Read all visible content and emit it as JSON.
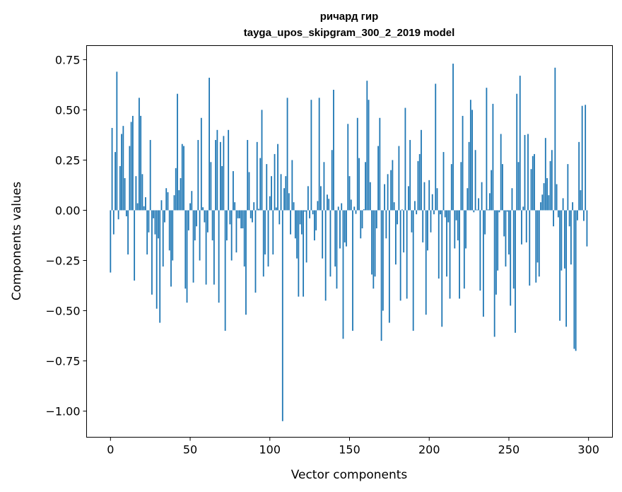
{
  "chart_data": {
    "type": "bar",
    "title": "ричард гир",
    "subtitle": "tayga_upos_skipgram_300_2_2019 model",
    "xlabel": "Vector components",
    "ylabel": "Components values",
    "xlim": [
      -15,
      315
    ],
    "ylim": [
      -1.13,
      0.82
    ],
    "xticks": [
      0,
      50,
      100,
      150,
      200,
      250,
      300
    ],
    "yticks": [
      -1.0,
      -0.75,
      -0.5,
      -0.25,
      0.0,
      0.25,
      0.5,
      0.75
    ],
    "ytick_labels": [
      "−1.00",
      "−0.75",
      "−0.50",
      "−0.25",
      "0.00",
      "0.25",
      "0.50",
      "0.75"
    ],
    "xtick_labels": [
      "0",
      "50",
      "100",
      "150",
      "200",
      "250",
      "300"
    ],
    "grid": false,
    "color": "#1f77b4",
    "values": [
      -0.31,
      0.41,
      -0.12,
      0.29,
      0.69,
      -0.045,
      0.22,
      0.38,
      0.42,
      0.16,
      -0.03,
      -0.22,
      0.32,
      0.44,
      0.47,
      -0.35,
      0.17,
      0.035,
      0.56,
      0.47,
      0.18,
      0.02,
      0.065,
      -0.22,
      -0.11,
      0.35,
      -0.42,
      -0.04,
      -0.12,
      -0.49,
      -0.14,
      -0.56,
      0.05,
      -0.28,
      -0.06,
      0.11,
      0.09,
      -0.2,
      -0.38,
      -0.25,
      0.075,
      0.21,
      0.58,
      0.1,
      0.16,
      0.33,
      0.32,
      -0.39,
      -0.46,
      -0.1,
      0.035,
      0.096,
      -0.36,
      -0.15,
      -0.08,
      0.35,
      -0.25,
      0.46,
      0.015,
      -0.06,
      -0.37,
      -0.11,
      0.66,
      0.24,
      -0.15,
      -0.37,
      0.35,
      0.4,
      -0.46,
      0.34,
      0.22,
      0.37,
      -0.6,
      -0.15,
      0.4,
      -0.07,
      -0.25,
      0.195,
      0.04,
      -0.21,
      -0.04,
      -0.04,
      -0.09,
      -0.09,
      -0.28,
      -0.52,
      0.35,
      0.19,
      -0.04,
      -0.06,
      0.04,
      -0.41,
      0.34,
      0.007,
      0.26,
      0.5,
      -0.33,
      -0.22,
      0.23,
      -0.28,
      0.07,
      0.17,
      -0.22,
      0.28,
      0.014,
      0.33,
      -0.07,
      0.18,
      -1.05,
      0.11,
      0.17,
      0.56,
      0.085,
      -0.12,
      0.25,
      0.04,
      -0.14,
      -0.24,
      -0.43,
      -0.07,
      -0.12,
      -0.43,
      -0.007,
      -0.26,
      0.12,
      -0.04,
      0.55,
      -0.02,
      -0.15,
      -0.1,
      0.046,
      0.56,
      0.12,
      -0.24,
      0.24,
      -0.45,
      0.078,
      0.057,
      -0.33,
      0.3,
      0.6,
      -0.28,
      -0.39,
      0.018,
      -0.19,
      0.035,
      -0.64,
      -0.16,
      -0.18,
      0.43,
      0.17,
      0.053,
      -0.6,
      0.018,
      -0.018,
      0.46,
      0.26,
      -0.14,
      -0.09,
      0.005,
      0.24,
      0.645,
      0.55,
      0.14,
      -0.32,
      -0.39,
      -0.33,
      -0.09,
      0.32,
      0.46,
      -0.65,
      -0.5,
      0.13,
      -0.14,
      0.18,
      -0.56,
      0.2,
      0.25,
      0.04,
      -0.27,
      -0.07,
      0.32,
      -0.45,
      0.004,
      -0.21,
      0.51,
      -0.44,
      0.12,
      0.35,
      -0.11,
      -0.6,
      0.046,
      -0.02,
      0.245,
      0.28,
      0.4,
      -0.16,
      0.14,
      -0.52,
      -0.2,
      0.15,
      -0.11,
      0.08,
      -0.02,
      0.63,
      0.11,
      -0.34,
      -0.02,
      -0.58,
      0.29,
      -0.035,
      -0.33,
      -0.06,
      -0.44,
      0.23,
      0.73,
      -0.19,
      -0.05,
      -0.15,
      -0.44,
      0.24,
      0.47,
      -0.39,
      -0.19,
      0.11,
      0.34,
      0.55,
      0.5,
      -0.01,
      0.3,
      0.003,
      0.06,
      -0.4,
      0.14,
      -0.53,
      -0.12,
      0.61,
      0.004,
      0.085,
      0.2,
      0.53,
      -0.63,
      -0.42,
      -0.3,
      -0.01,
      0.38,
      0.23,
      -0.13,
      -0.28,
      -0.007,
      -0.22,
      -0.475,
      0.11,
      -0.39,
      -0.61,
      0.58,
      0.24,
      0.67,
      -0.17,
      0.018,
      0.375,
      -0.16,
      0.38,
      -0.375,
      0.205,
      0.27,
      0.28,
      -0.36,
      -0.26,
      -0.33,
      0.04,
      0.078,
      0.135,
      0.36,
      0.16,
      0.075,
      0.245,
      0.3,
      -0.08,
      0.71,
      0.13,
      -0.035,
      -0.55,
      -0.3,
      0.06,
      -0.29,
      -0.58,
      0.23,
      -0.08,
      -0.27,
      0.04,
      -0.69,
      -0.7,
      -0.05,
      0.34,
      0.1,
      0.52,
      -0.053,
      0.525,
      -0.18
    ]
  }
}
